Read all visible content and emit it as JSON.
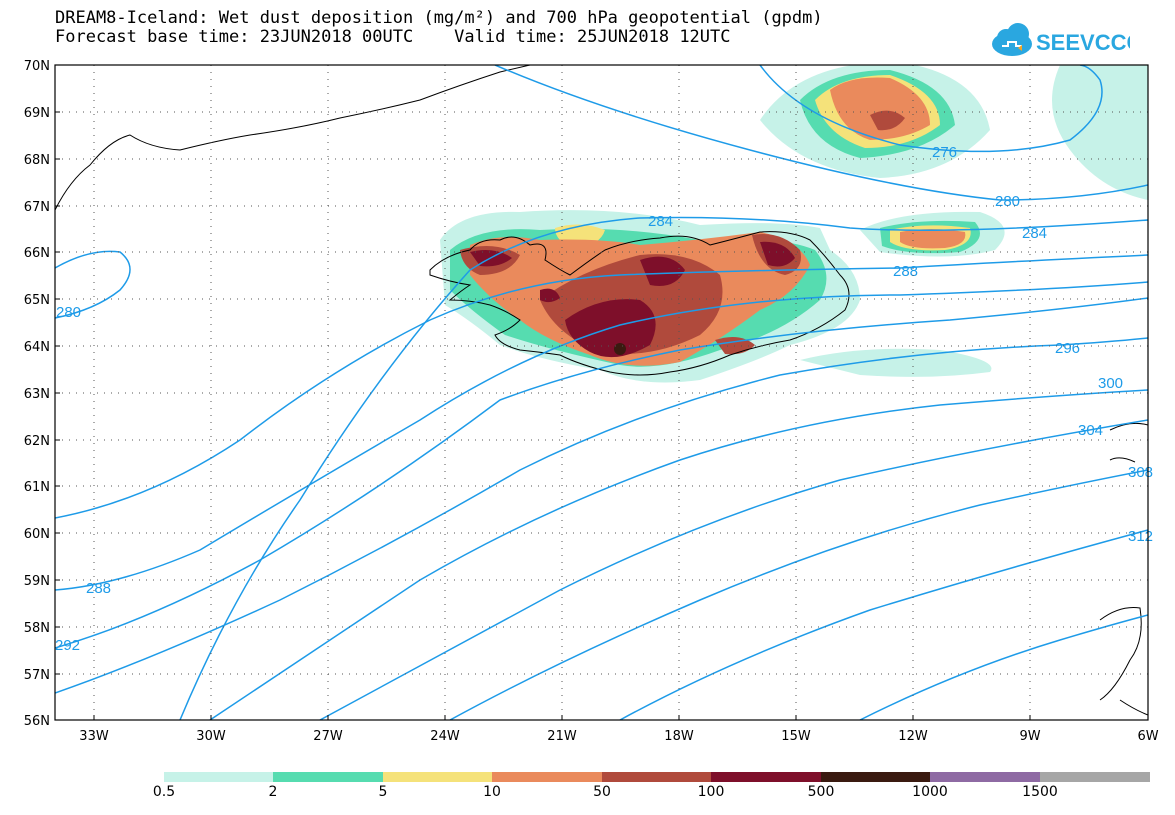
{
  "title": {
    "line1": "DREAM8-Iceland: Wet dust deposition (mg/m²) and 700 hPa geopotential (gpdm)",
    "line2": "Forecast base time: 23JUN2018 00UTC    Valid time: 25JUN2018 12UTC"
  },
  "logo": {
    "text": "SEEVCCC",
    "color": "#2aa7e0",
    "icon": "cloud-icon"
  },
  "axes": {
    "lat_labels": [
      "70N",
      "69N",
      "68N",
      "67N",
      "66N",
      "65N",
      "64N",
      "63N",
      "62N",
      "61N",
      "60N",
      "59N",
      "58N",
      "57N",
      "56N"
    ],
    "lon_labels": [
      "33W",
      "30W",
      "27W",
      "24W",
      "21W",
      "18W",
      "15W",
      "12W",
      "9W",
      "6W"
    ],
    "lat_range": [
      56,
      70
    ],
    "lon_range": [
      -34,
      -6
    ],
    "grid": "dotted"
  },
  "contours": {
    "variable": "700 hPa geopotential (gpdm)",
    "color": "#1e9be8",
    "labels": [
      "276",
      "280",
      "284",
      "288",
      "296",
      "300",
      "304",
      "308",
      "312",
      "280",
      "288",
      "292"
    ]
  },
  "legend": {
    "thresholds": [
      "0.5",
      "2",
      "5",
      "10",
      "50",
      "100",
      "500",
      "1000",
      "1500"
    ],
    "colors": [
      "#c6f2e8",
      "#56dcb0",
      "#f5e27a",
      "#ea8a5c",
      "#b04a3c",
      "#7e0f2a",
      "#3a1a10",
      "#8e6aa3",
      "#a6a6a6"
    ]
  }
}
